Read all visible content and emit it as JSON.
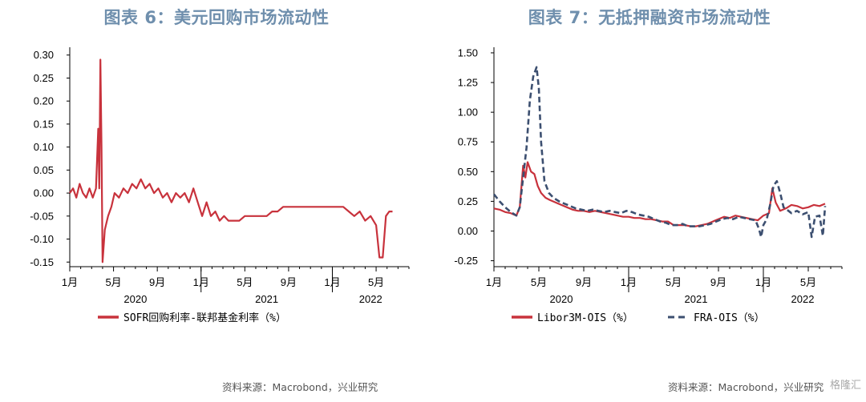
{
  "left": {
    "title": "图表 6：美元回购市场流动性",
    "source": "资料来源：Macrobond，兴业研究",
    "chart_data": {
      "type": "line",
      "x_ticks": [
        "1月",
        "5月",
        "9月",
        "1月",
        "5月",
        "9月",
        "1月",
        "5月"
      ],
      "year_labels": [
        "2020",
        "2021",
        "2022"
      ],
      "y_ticks": [
        "0.30",
        "0.25",
        "0.20",
        "0.15",
        "0.10",
        "0.05",
        "0.00",
        "-0.05",
        "-0.10",
        "-0.15"
      ],
      "ylim": [
        -0.16,
        0.31
      ],
      "xlim_months": [
        0,
        31
      ],
      "colors": {
        "red": "#c8323c"
      },
      "series": [
        {
          "name": "SOFR回购利率-联邦基金利率（%）",
          "style": "solid",
          "color": "#c8323c",
          "points": [
            [
              0.0,
              0.0
            ],
            [
              0.3,
              0.01
            ],
            [
              0.6,
              -0.01
            ],
            [
              0.9,
              0.02
            ],
            [
              1.2,
              0.0
            ],
            [
              1.5,
              -0.01
            ],
            [
              1.8,
              0.01
            ],
            [
              2.1,
              -0.01
            ],
            [
              2.4,
              0.01
            ],
            [
              2.6,
              0.14
            ],
            [
              2.7,
              0.01
            ],
            [
              2.8,
              0.29
            ],
            [
              2.9,
              0.1
            ],
            [
              3.0,
              -0.15
            ],
            [
              3.2,
              -0.08
            ],
            [
              3.5,
              -0.05
            ],
            [
              3.8,
              -0.03
            ],
            [
              4.1,
              0.0
            ],
            [
              4.5,
              -0.01
            ],
            [
              4.9,
              0.01
            ],
            [
              5.3,
              0.0
            ],
            [
              5.7,
              0.02
            ],
            [
              6.1,
              0.01
            ],
            [
              6.5,
              0.03
            ],
            [
              6.9,
              0.01
            ],
            [
              7.3,
              0.02
            ],
            [
              7.7,
              0.0
            ],
            [
              8.1,
              0.01
            ],
            [
              8.5,
              -0.01
            ],
            [
              8.9,
              0.0
            ],
            [
              9.3,
              -0.02
            ],
            [
              9.7,
              0.0
            ],
            [
              10.1,
              -0.01
            ],
            [
              10.5,
              0.0
            ],
            [
              10.9,
              -0.02
            ],
            [
              11.3,
              0.01
            ],
            [
              11.7,
              -0.02
            ],
            [
              12.1,
              -0.05
            ],
            [
              12.5,
              -0.02
            ],
            [
              12.9,
              -0.05
            ],
            [
              13.3,
              -0.04
            ],
            [
              13.7,
              -0.06
            ],
            [
              14.1,
              -0.05
            ],
            [
              14.5,
              -0.06
            ],
            [
              15.0,
              -0.06
            ],
            [
              15.5,
              -0.06
            ],
            [
              16.0,
              -0.05
            ],
            [
              16.5,
              -0.05
            ],
            [
              17.0,
              -0.05
            ],
            [
              17.5,
              -0.05
            ],
            [
              18.0,
              -0.05
            ],
            [
              18.5,
              -0.04
            ],
            [
              19.0,
              -0.04
            ],
            [
              19.5,
              -0.03
            ],
            [
              20.0,
              -0.03
            ],
            [
              20.5,
              -0.03
            ],
            [
              21.0,
              -0.03
            ],
            [
              21.5,
              -0.03
            ],
            [
              22.0,
              -0.03
            ],
            [
              22.5,
              -0.03
            ],
            [
              23.0,
              -0.03
            ],
            [
              23.5,
              -0.03
            ],
            [
              24.0,
              -0.03
            ],
            [
              24.5,
              -0.03
            ],
            [
              25.0,
              -0.03
            ],
            [
              25.5,
              -0.04
            ],
            [
              26.0,
              -0.05
            ],
            [
              26.5,
              -0.04
            ],
            [
              27.0,
              -0.06
            ],
            [
              27.5,
              -0.05
            ],
            [
              28.0,
              -0.07
            ],
            [
              28.3,
              -0.14
            ],
            [
              28.6,
              -0.14
            ],
            [
              28.9,
              -0.05
            ],
            [
              29.2,
              -0.04
            ],
            [
              29.5,
              -0.04
            ]
          ]
        }
      ]
    }
  },
  "right": {
    "title": "图表 7：无抵押融资市场流动性",
    "source": "资料来源：Macrobond，兴业研究",
    "watermark": "格隆汇",
    "chart_data": {
      "type": "line",
      "x_ticks": [
        "1月",
        "5月",
        "9月",
        "1月",
        "5月",
        "9月",
        "1月",
        "5月"
      ],
      "year_labels": [
        "2020",
        "2021",
        "2022"
      ],
      "y_ticks": [
        "1.50",
        "1.25",
        "1.00",
        "0.75",
        "0.50",
        "0.25",
        "0.00",
        "-0.25"
      ],
      "ylim": [
        -0.3,
        1.52
      ],
      "xlim_months": [
        0,
        31
      ],
      "colors": {
        "red": "#c8323c",
        "blue": "#3c4f70"
      },
      "series": [
        {
          "name": "Libor3M-OIS（%）",
          "style": "solid",
          "color": "#c8323c",
          "points": [
            [
              0.0,
              0.19
            ],
            [
              0.5,
              0.18
            ],
            [
              1.0,
              0.16
            ],
            [
              1.5,
              0.15
            ],
            [
              2.0,
              0.13
            ],
            [
              2.3,
              0.2
            ],
            [
              2.6,
              0.55
            ],
            [
              2.8,
              0.45
            ],
            [
              3.0,
              0.58
            ],
            [
              3.3,
              0.5
            ],
            [
              3.6,
              0.48
            ],
            [
              3.9,
              0.38
            ],
            [
              4.2,
              0.32
            ],
            [
              4.6,
              0.28
            ],
            [
              5.0,
              0.26
            ],
            [
              5.5,
              0.24
            ],
            [
              6.0,
              0.22
            ],
            [
              6.5,
              0.2
            ],
            [
              7.0,
              0.18
            ],
            [
              7.5,
              0.17
            ],
            [
              8.0,
              0.17
            ],
            [
              8.5,
              0.16
            ],
            [
              9.0,
              0.17
            ],
            [
              9.5,
              0.16
            ],
            [
              10.0,
              0.15
            ],
            [
              10.5,
              0.14
            ],
            [
              11.0,
              0.13
            ],
            [
              11.5,
              0.12
            ],
            [
              12.0,
              0.12
            ],
            [
              12.5,
              0.11
            ],
            [
              13.0,
              0.11
            ],
            [
              13.5,
              0.1
            ],
            [
              14.0,
              0.1
            ],
            [
              14.5,
              0.09
            ],
            [
              15.0,
              0.08
            ],
            [
              15.5,
              0.08
            ],
            [
              16.0,
              0.05
            ],
            [
              16.5,
              0.05
            ],
            [
              17.0,
              0.05
            ],
            [
              17.5,
              0.04
            ],
            [
              18.0,
              0.04
            ],
            [
              18.5,
              0.05
            ],
            [
              19.0,
              0.06
            ],
            [
              19.5,
              0.08
            ],
            [
              20.0,
              0.1
            ],
            [
              20.5,
              0.12
            ],
            [
              21.0,
              0.11
            ],
            [
              21.5,
              0.13
            ],
            [
              22.0,
              0.12
            ],
            [
              22.5,
              0.11
            ],
            [
              23.0,
              0.1
            ],
            [
              23.5,
              0.09
            ],
            [
              24.0,
              0.13
            ],
            [
              24.5,
              0.15
            ],
            [
              24.8,
              0.36
            ],
            [
              25.1,
              0.24
            ],
            [
              25.5,
              0.17
            ],
            [
              26.0,
              0.19
            ],
            [
              26.5,
              0.22
            ],
            [
              27.0,
              0.21
            ],
            [
              27.5,
              0.19
            ],
            [
              28.0,
              0.2
            ],
            [
              28.5,
              0.22
            ],
            [
              29.0,
              0.21
            ],
            [
              29.5,
              0.23
            ]
          ]
        },
        {
          "name": "FRA-OIS（%）",
          "style": "dashed",
          "color": "#3c4f70",
          "points": [
            [
              0.0,
              0.31
            ],
            [
              0.5,
              0.25
            ],
            [
              1.0,
              0.2
            ],
            [
              1.5,
              0.16
            ],
            [
              2.0,
              0.13
            ],
            [
              2.3,
              0.2
            ],
            [
              2.6,
              0.45
            ],
            [
              2.9,
              0.7
            ],
            [
              3.2,
              1.1
            ],
            [
              3.5,
              1.3
            ],
            [
              3.8,
              1.38
            ],
            [
              4.0,
              1.2
            ],
            [
              4.2,
              0.75
            ],
            [
              4.5,
              0.42
            ],
            [
              4.9,
              0.32
            ],
            [
              5.3,
              0.28
            ],
            [
              5.8,
              0.25
            ],
            [
              6.3,
              0.23
            ],
            [
              6.8,
              0.21
            ],
            [
              7.3,
              0.19
            ],
            [
              7.8,
              0.18
            ],
            [
              8.3,
              0.17
            ],
            [
              8.8,
              0.18
            ],
            [
              9.3,
              0.17
            ],
            [
              9.8,
              0.16
            ],
            [
              10.3,
              0.17
            ],
            [
              10.8,
              0.16
            ],
            [
              11.3,
              0.15
            ],
            [
              11.8,
              0.17
            ],
            [
              12.3,
              0.16
            ],
            [
              12.8,
              0.14
            ],
            [
              13.3,
              0.13
            ],
            [
              13.8,
              0.12
            ],
            [
              14.3,
              0.1
            ],
            [
              14.8,
              0.08
            ],
            [
              15.3,
              0.07
            ],
            [
              15.8,
              0.05
            ],
            [
              16.3,
              0.05
            ],
            [
              16.8,
              0.06
            ],
            [
              17.3,
              0.04
            ],
            [
              17.8,
              0.04
            ],
            [
              18.3,
              0.04
            ],
            [
              18.8,
              0.05
            ],
            [
              19.3,
              0.06
            ],
            [
              19.8,
              0.08
            ],
            [
              20.3,
              0.1
            ],
            [
              20.8,
              0.11
            ],
            [
              21.3,
              0.1
            ],
            [
              21.8,
              0.12
            ],
            [
              22.3,
              0.11
            ],
            [
              22.8,
              0.1
            ],
            [
              23.3,
              0.09
            ],
            [
              23.6,
              0.02
            ],
            [
              23.8,
              -0.05
            ],
            [
              24.0,
              0.05
            ],
            [
              24.3,
              0.1
            ],
            [
              24.6,
              0.22
            ],
            [
              24.9,
              0.38
            ],
            [
              25.2,
              0.42
            ],
            [
              25.5,
              0.32
            ],
            [
              25.8,
              0.2
            ],
            [
              26.1,
              0.18
            ],
            [
              26.5,
              0.15
            ],
            [
              27.0,
              0.17
            ],
            [
              27.5,
              0.14
            ],
            [
              28.0,
              0.16
            ],
            [
              28.3,
              -0.05
            ],
            [
              28.6,
              0.12
            ],
            [
              29.0,
              0.13
            ],
            [
              29.3,
              -0.04
            ],
            [
              29.5,
              0.21
            ]
          ]
        }
      ]
    }
  }
}
